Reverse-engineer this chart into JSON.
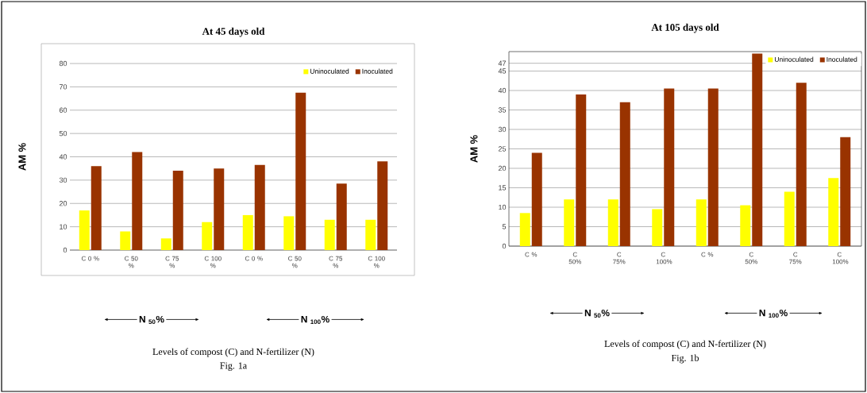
{
  "chart_data": [
    {
      "type": "bar",
      "title": "At 45 days old",
      "xlabel": "Levels of compost (C) and N-fertilizer (N)",
      "ylabel": "AM %",
      "categories": [
        "C 0 %",
        "C 50 %",
        "C 75 %",
        "C 100 %",
        "C 0 %",
        "C 50 %",
        "C 75 %",
        "C 100 %"
      ],
      "series": [
        {
          "name": "Uninoculated",
          "color": "#ffff00",
          "values": [
            17,
            8,
            5,
            12,
            15,
            14.5,
            13,
            13
          ]
        },
        {
          "name": "Inoculated",
          "color": "#993300",
          "values": [
            36,
            42,
            34,
            35,
            36.5,
            67.5,
            28.5,
            38
          ]
        }
      ],
      "ylim": [
        0,
        80
      ],
      "yticks": [
        0,
        10,
        20,
        30,
        40,
        50,
        60,
        70,
        80
      ],
      "grid": "y",
      "legend": "top right",
      "annotations": [
        "N $_{50}$%",
        "N $_{100}$%",
        "Fig. 1a"
      ]
    },
    {
      "type": "bar",
      "title": "At 105 days old",
      "xlabel": "Levels of compost (C) and N-fertilizer (N)",
      "ylabel": "AM %",
      "categories": [
        "C %",
        "C 50%",
        "C 75%",
        "C 100%",
        "C %",
        "C 50%",
        "C 75%",
        "C 100%"
      ],
      "series": [
        {
          "name": "Uninoculated",
          "color": "#ffff00",
          "values": [
            8.5,
            12,
            12,
            9.5,
            12,
            10.5,
            14,
            17.5
          ]
        },
        {
          "name": "Inoculated",
          "color": "#993300",
          "values": [
            24,
            39,
            37,
            40.5,
            40.5,
            49.5,
            42,
            28
          ]
        }
      ],
      "ylim": [
        0,
        50
      ],
      "yticks": [
        0,
        5,
        10,
        15,
        20,
        25,
        30,
        35,
        40,
        45,
        47
      ],
      "grid": "y",
      "legend": "top right",
      "annotations": [
        "N $_{50}$%",
        "N $_{100}$%",
        "Fig. 1b"
      ]
    }
  ]
}
